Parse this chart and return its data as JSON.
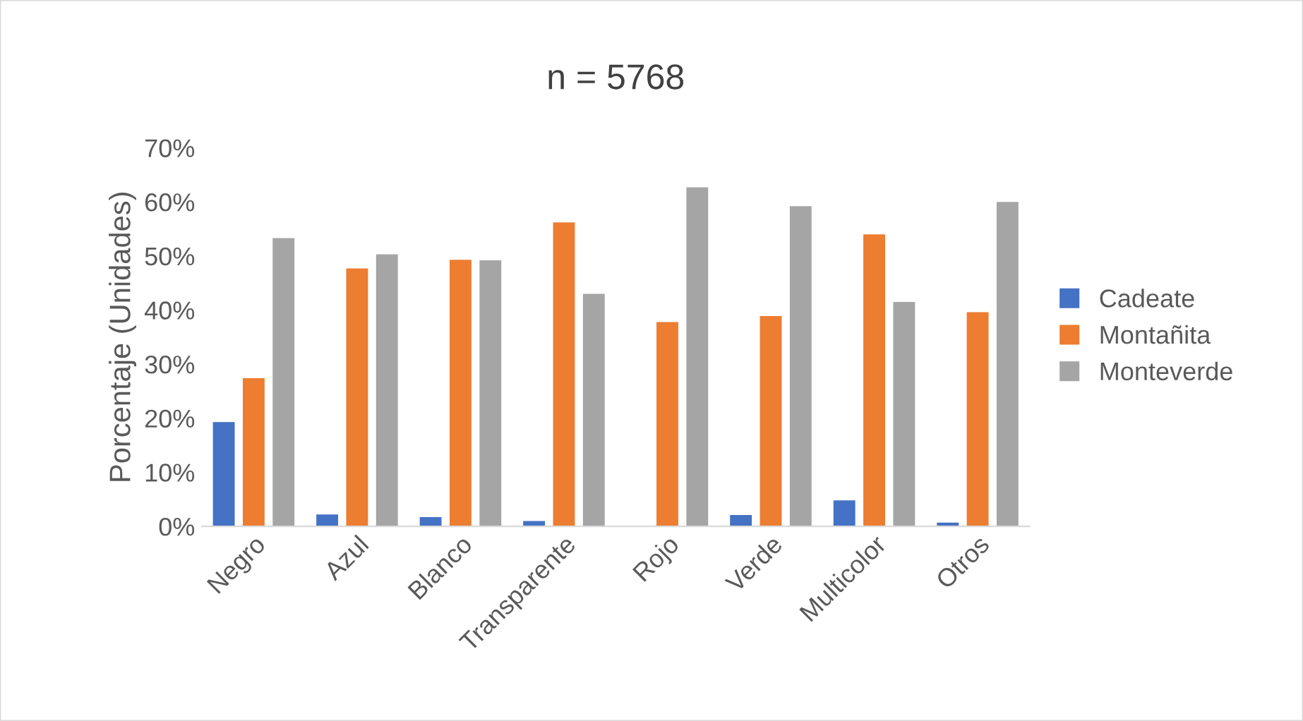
{
  "chart_data": {
    "type": "bar",
    "title": "n = 5768",
    "ylabel": "Porcentaje (Unidades)",
    "categories": [
      "Negro",
      "Azul",
      "Blanco",
      "Transparente",
      "Rojo",
      "Verde",
      "Multicolor",
      "Otros"
    ],
    "series": [
      {
        "name": "Cadeate",
        "color": "#4472c4",
        "values": [
          19.4,
          2.3,
          1.8,
          1.1,
          null,
          2.2,
          4.9,
          0.8
        ]
      },
      {
        "name": "Montañita",
        "color": "#ed7d31",
        "values": [
          27.5,
          47.8,
          49.4,
          56.3,
          37.9,
          39.0,
          54.1,
          39.7
        ]
      },
      {
        "name": "Monteverde",
        "color": "#a5a5a5",
        "values": [
          53.4,
          50.4,
          49.3,
          43.1,
          62.8,
          59.3,
          41.6,
          60.1
        ]
      }
    ],
    "ylim": [
      0,
      70
    ],
    "yticks": [
      {
        "value": 0,
        "label": "0%"
      },
      {
        "value": 10,
        "label": "10%"
      },
      {
        "value": 20,
        "label": "20%"
      },
      {
        "value": 30,
        "label": "30%"
      },
      {
        "value": 40,
        "label": "40%"
      },
      {
        "value": 50,
        "label": "50%"
      },
      {
        "value": 60,
        "label": "60%"
      },
      {
        "value": 70,
        "label": "70%"
      }
    ],
    "grid": false,
    "legend": "right"
  }
}
